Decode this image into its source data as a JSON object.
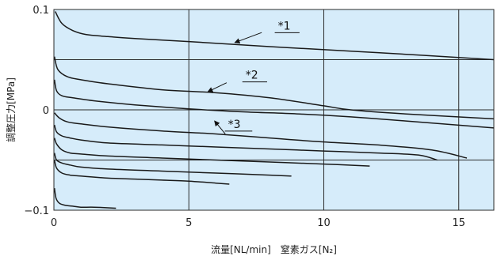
{
  "chart_data": {
    "type": "line",
    "title": "",
    "xlabel": "流量[NL/min]　窒素ガス[N₂]",
    "ylabel": "調整圧力[MPa]",
    "xlim": [
      0,
      16.3
    ],
    "ylim": [
      -0.1,
      0.1
    ],
    "x_ticks": [
      0,
      5,
      10,
      15
    ],
    "x_tick_labels": [
      "0",
      "5",
      "10",
      "15"
    ],
    "y_ticks": [
      -0.1,
      0,
      0.1
    ],
    "y_tick_labels": [
      "−0.1",
      "0",
      "0.1"
    ],
    "grid": true,
    "grid_y": [
      -0.05,
      0,
      0.05
    ],
    "colors": {
      "background": "#d6ecfa",
      "line": "#1a1a1a",
      "grid": "#2b2b2b"
    },
    "series": [
      {
        "x": [
          0.05,
          0.3,
          0.7,
          1.2,
          2,
          3,
          5,
          8,
          12,
          16.3
        ],
        "y": [
          0.098,
          0.086,
          0.079,
          0.075,
          0.073,
          0.071,
          0.068,
          0.063,
          0.057,
          0.05
        ]
      },
      {
        "x": [
          0.02,
          0.15,
          0.5,
          1,
          2,
          4,
          6,
          8,
          10,
          11,
          13,
          16.3
        ],
        "y": [
          0.053,
          0.04,
          0.033,
          0.03,
          0.026,
          0.02,
          0.017,
          0.012,
          0.004,
          0.0,
          -0.004,
          -0.009
        ]
      },
      {
        "x": [
          0.02,
          0.1,
          0.3,
          0.7,
          1.5,
          3,
          5,
          7,
          9,
          11,
          13,
          16.3
        ],
        "y": [
          0.03,
          0.019,
          0.014,
          0.012,
          0.009,
          0.005,
          0.001,
          -0.002,
          -0.004,
          -0.007,
          -0.011,
          -0.018
        ]
      },
      {
        "x": [
          0.02,
          0.2,
          0.5,
          1,
          2,
          4,
          6,
          8,
          10,
          12,
          14,
          15.3
        ],
        "y": [
          -0.003,
          -0.008,
          -0.012,
          -0.014,
          -0.017,
          -0.021,
          -0.024,
          -0.028,
          -0.032,
          -0.035,
          -0.04,
          -0.048
        ]
      },
      {
        "x": [
          0.02,
          0.1,
          0.3,
          0.6,
          1,
          2,
          4,
          6,
          8,
          10,
          12,
          13.5,
          14.2
        ],
        "y": [
          -0.015,
          -0.022,
          -0.026,
          -0.028,
          -0.03,
          -0.033,
          -0.035,
          -0.037,
          -0.039,
          -0.041,
          -0.043,
          -0.045,
          -0.05
        ]
      },
      {
        "x": [
          0.02,
          0.1,
          0.3,
          0.6,
          1,
          2,
          4,
          6,
          8,
          10,
          11.7
        ],
        "y": [
          -0.028,
          -0.034,
          -0.04,
          -0.043,
          -0.044,
          -0.046,
          -0.048,
          -0.05,
          -0.052,
          -0.054,
          -0.056
        ]
      },
      {
        "x": [
          0.02,
          0.1,
          0.3,
          0.6,
          1,
          2,
          4,
          6,
          8,
          8.8
        ],
        "y": [
          -0.043,
          -0.05,
          -0.053,
          -0.055,
          -0.057,
          -0.059,
          -0.061,
          -0.063,
          -0.065,
          -0.066
        ]
      },
      {
        "x": [
          0.02,
          0.1,
          0.3,
          0.6,
          1,
          2,
          3,
          4,
          5,
          6,
          6.5
        ],
        "y": [
          -0.05,
          -0.058,
          -0.063,
          -0.065,
          -0.066,
          -0.068,
          -0.069,
          -0.07,
          -0.071,
          -0.073,
          -0.074
        ]
      },
      {
        "x": [
          0.02,
          0.08,
          0.2,
          0.4,
          0.7,
          1,
          1.5,
          2.3
        ],
        "y": [
          -0.078,
          -0.088,
          -0.093,
          -0.095,
          -0.096,
          -0.097,
          -0.097,
          -0.098
        ]
      }
    ],
    "annotations": [
      {
        "text": "*1",
        "label_x": 8.3,
        "label_y": 0.08,
        "underline_to_x": 9.1,
        "arrow_from_x": 7.7,
        "arrow_from_y": 0.077,
        "arrow_to_x": 6.7,
        "arrow_to_y": 0.067
      },
      {
        "text": "*2",
        "label_x": 7.1,
        "label_y": 0.031,
        "underline_to_x": 7.9,
        "arrow_from_x": 6.4,
        "arrow_from_y": 0.027,
        "arrow_to_x": 5.7,
        "arrow_to_y": 0.018
      },
      {
        "text": "*3",
        "label_x": 6.45,
        "label_y": -0.018,
        "underline_to_x": 7.35,
        "arrow_from_x": 6.35,
        "arrow_from_y": -0.024,
        "arrow_to_x": 5.95,
        "arrow_to_y": -0.011
      }
    ]
  }
}
